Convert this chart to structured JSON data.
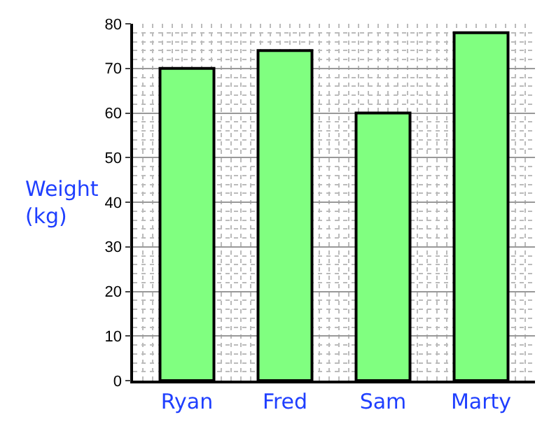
{
  "chart_data": {
    "type": "bar",
    "ylabel": "Weight\n(kg)",
    "categories": [
      "Ryan",
      "Fred",
      "Sam",
      "Marty"
    ],
    "values": [
      70,
      74,
      60,
      78
    ],
    "color": "#80ff80",
    "ylim": [
      0,
      80
    ],
    "yticks": [
      0,
      10,
      20,
      30,
      40,
      50,
      60,
      70,
      80
    ],
    "grid": true
  }
}
